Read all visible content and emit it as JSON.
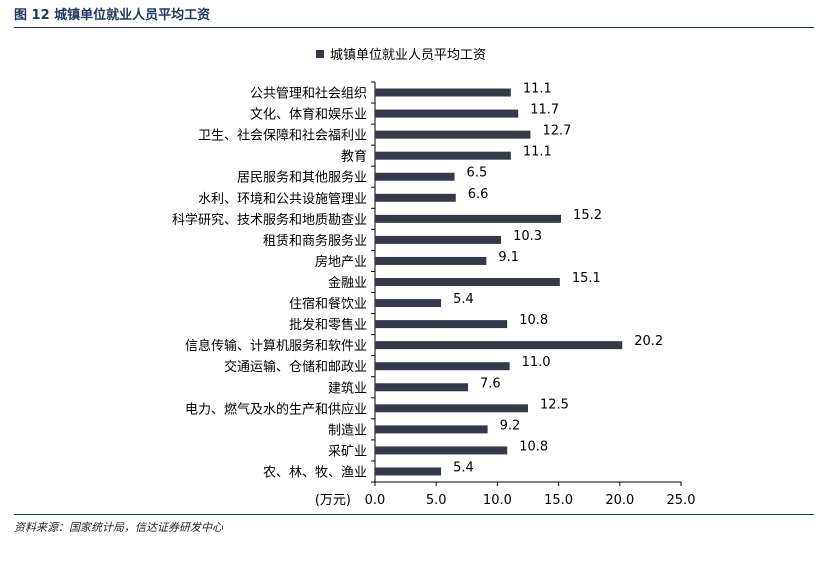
{
  "header": {
    "figure_title": "图 12    城镇单位就业人员平均工资",
    "source": "资料来源：国家统计局，信达证券研发中心"
  },
  "colors": {
    "bar": "#363947",
    "header_rule": "#1f3864"
  },
  "chart_data": {
    "type": "bar",
    "orientation": "horizontal",
    "categories": [
      "公共管理和社会组织",
      "文化、体育和娱乐业",
      "卫生、社会保障和社会福利业",
      "教育",
      "居民服务和其他服务业",
      "水利、环境和公共设施管理业",
      "科学研究、技术服务和地质勘查业",
      "租赁和商务服务业",
      "房地产业",
      "金融业",
      "住宿和餐饮业",
      "批发和零售业",
      "信息传输、计算机服务和软件业",
      "交通运输、仓储和邮政业",
      "建筑业",
      "电力、燃气及水的生产和供应业",
      "制造业",
      "采矿业",
      "农、林、牧、渔业"
    ],
    "series": [
      {
        "name": "城镇单位就业人员平均工资",
        "values": [
          11.1,
          11.7,
          12.7,
          11.1,
          6.5,
          6.6,
          15.2,
          10.3,
          9.1,
          15.1,
          5.4,
          10.8,
          20.2,
          11.0,
          7.6,
          12.5,
          9.2,
          10.8,
          5.4
        ],
        "value_labels": [
          "11.1",
          "11.7",
          "12.7",
          "11.1",
          "6.5",
          "6.6",
          "15.2",
          "10.3",
          "9.1",
          "15.1",
          "5.4",
          "10.8",
          "20.2",
          "11.0",
          "7.6",
          "12.5",
          "9.2",
          "10.8",
          "5.4"
        ]
      }
    ],
    "xlim": [
      0,
      25
    ],
    "xticks": [
      "0.0",
      "5.0",
      "10.0",
      "15.0",
      "20.0",
      "25.0"
    ],
    "x_unit_label": "(万元)",
    "legend_position": "top",
    "grid": false
  }
}
